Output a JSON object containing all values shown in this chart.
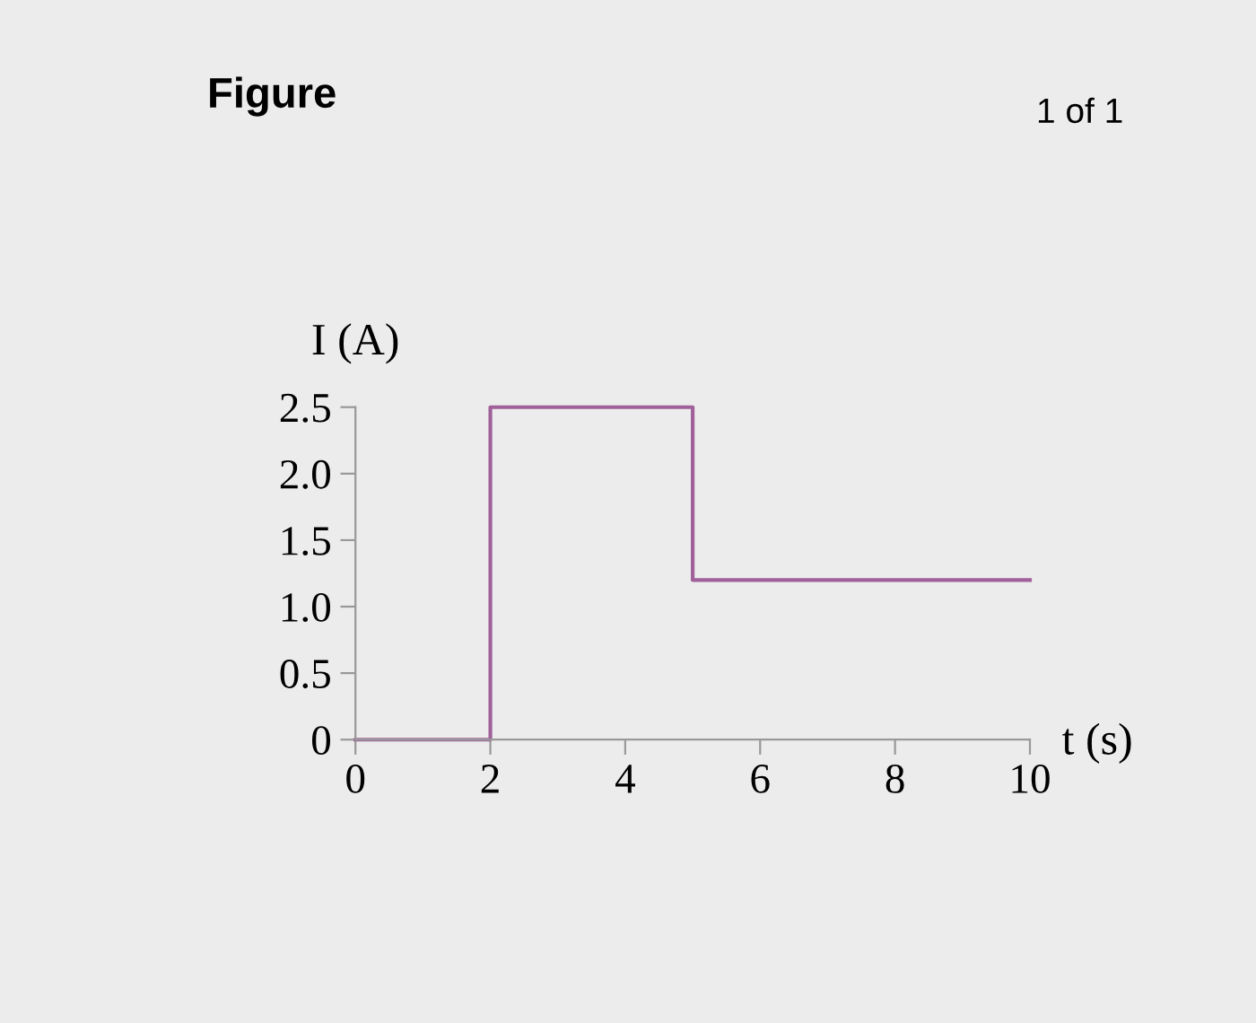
{
  "chart_data": {
    "type": "step",
    "title": "Figure",
    "annotations": [
      "1 of 1"
    ],
    "xlabel": "t (s)",
    "ylabel": "I (A)",
    "x": [
      0,
      2,
      5,
      10
    ],
    "series": [
      {
        "color": "#a0609a",
        "values": [
          0,
          2.5,
          1.2,
          1.2
        ]
      }
    ],
    "xlim": [
      0,
      10
    ],
    "ylim": [
      0,
      2.5
    ],
    "xticks": [
      0,
      2,
      4,
      6,
      8,
      10
    ],
    "yticks": [
      0,
      0.5,
      {
        "value": 1.0,
        "label": "1.0"
      },
      1.5,
      {
        "value": 2.0,
        "label": "2.0"
      },
      2.5
    ],
    "grid": false,
    "legend": false
  }
}
